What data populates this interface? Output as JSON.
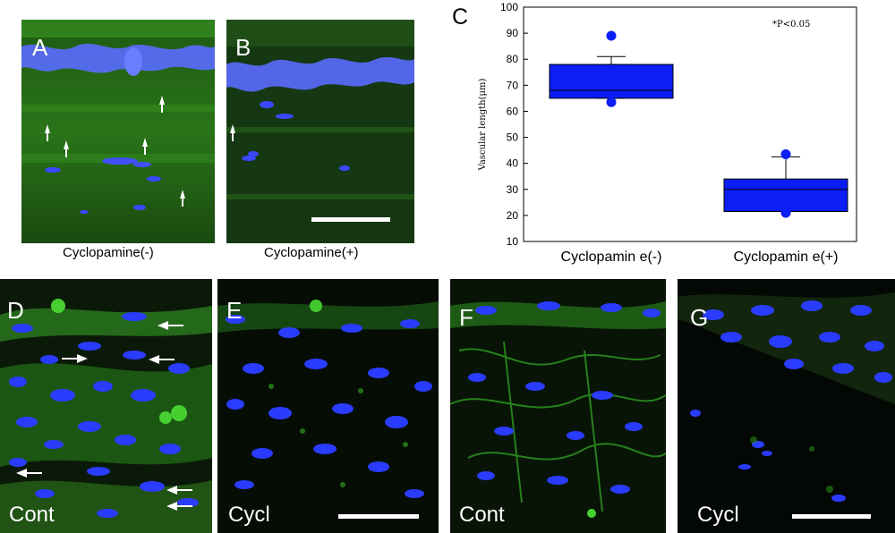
{
  "panels": {
    "a": {
      "label": "A",
      "caption": "Cyclopamine(-)"
    },
    "b": {
      "label": "B",
      "caption": "Cyclopamine(+)"
    },
    "c": {
      "label": "C"
    },
    "d": {
      "label": "D",
      "corner": "Cont"
    },
    "e": {
      "label": "E",
      "corner": "Cycl"
    },
    "f": {
      "label": "F",
      "corner": "Cont"
    },
    "g": {
      "label": "G",
      "corner": "Cycl"
    }
  },
  "colors": {
    "nuclei": "#2a3cff",
    "stain": "#3fbf2a",
    "box_fill": "#0a1ef5",
    "arrow": "#ffffff"
  },
  "chart_data": {
    "type": "box",
    "ylabel": "Vascular length(μm)",
    "ylim": [
      10,
      100
    ],
    "yticks": [
      10,
      20,
      30,
      40,
      50,
      60,
      70,
      80,
      90,
      100
    ],
    "categories": [
      "Cyclopamin e(-)",
      "Cyclopamin e(+)"
    ],
    "annotation": "*P<0.05",
    "boxes": [
      {
        "whisker_low": 65,
        "q1": 65,
        "median": 68,
        "q3": 78,
        "whisker_high": 81,
        "outliers": [
          63.5,
          89
        ]
      },
      {
        "whisker_low": 21.5,
        "q1": 21.5,
        "median": 30,
        "q3": 34,
        "whisker_high": 42.5,
        "outliers": [
          21,
          43.5
        ]
      }
    ]
  }
}
